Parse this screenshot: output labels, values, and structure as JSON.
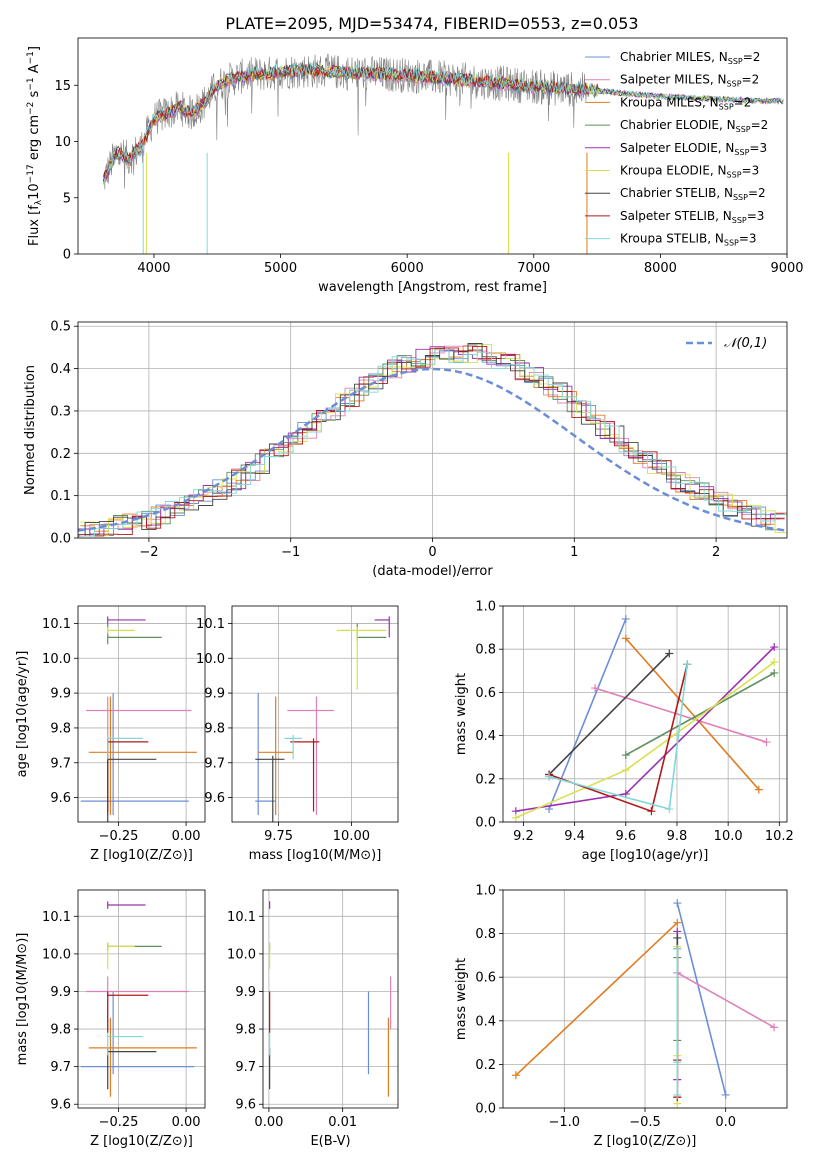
{
  "figure": {
    "title": "PLATE=2095, MJD=53474, FIBERID=0553, z=0.053"
  },
  "series_styles": [
    {
      "name": "Chabrier MILES",
      "nssp": "2",
      "color": "#6b8fd6"
    },
    {
      "name": "Salpeter MILES",
      "nssp": "2",
      "color": "#e080b8"
    },
    {
      "name": "Kroupa MILES",
      "nssp": "2",
      "color": "#e07b20"
    },
    {
      "name": "Chabrier ELODIE",
      "nssp": "2",
      "color": "#5e8f5e"
    },
    {
      "name": "Salpeter ELODIE",
      "nssp": "3",
      "color": "#9b30b0"
    },
    {
      "name": "Kroupa ELODIE",
      "nssp": "3",
      "color": "#d8e050"
    },
    {
      "name": "Chabrier STELIB",
      "nssp": "2",
      "color": "#444444"
    },
    {
      "name": "Salpeter STELIB",
      "nssp": "3",
      "color": "#b01818"
    },
    {
      "name": "Kroupa STELIB",
      "nssp": "3",
      "color": "#80d8d8"
    }
  ],
  "chart_data": [
    {
      "id": "spectrum",
      "type": "line",
      "xlabel": "wavelength [Angstrom, rest frame]",
      "ylabel": "Flux [f_λ10^-17 erg cm^-2 s^-1 A^-1]",
      "xlim": [
        3400,
        9000
      ],
      "ylim": [
        0,
        19.2
      ],
      "xticks": [
        4000,
        5000,
        6000,
        7000,
        8000,
        9000
      ],
      "yticks": [
        0,
        5,
        10,
        15
      ],
      "data_color": "#808080",
      "data_continuum": {
        "x": [
          3600,
          3700,
          3800,
          3900,
          4000,
          4100,
          4200,
          4300,
          4400,
          4500,
          4600,
          4700,
          4800,
          4900,
          5000,
          5200,
          5400,
          5600,
          5800,
          6000,
          6200,
          6400,
          6600,
          6800,
          7000,
          7200,
          7400,
          7600,
          7800,
          8000,
          8200,
          8400,
          8600,
          8800,
          8950
        ],
        "y": [
          6.5,
          9,
          8.5,
          9.5,
          12,
          12.5,
          13,
          12.5,
          13.5,
          15,
          15.5,
          15.8,
          16,
          16,
          16.2,
          16.3,
          16.2,
          16.1,
          16,
          15.9,
          15.7,
          15.5,
          15.3,
          15.1,
          14.9,
          14.7,
          14.6,
          14.4,
          14.2,
          14.0,
          13.9,
          13.8,
          13.7,
          13.6,
          13.6
        ]
      },
      "legend_position": "upper right"
    },
    {
      "id": "residuals",
      "type": "step",
      "xlabel": "(data-model)/error",
      "ylabel": "Normed distribution",
      "xlim": [
        -2.5,
        2.5
      ],
      "ylim": [
        0,
        0.51
      ],
      "xticks": [
        -2,
        -1,
        0,
        1,
        2
      ],
      "yticks": [
        0,
        0.1,
        0.2,
        0.3,
        0.4,
        0.5
      ],
      "reference_curve": {
        "name": "𝒩(0,1)",
        "type": "gaussian",
        "mean": 0,
        "sigma": 1,
        "color": "#6b8fd6"
      },
      "legend_position": "upper right",
      "bin_width": 0.1,
      "bins_from": -2.5
    },
    {
      "id": "age-vs-Z",
      "type": "errorbar",
      "xlabel": "Z [log10(Z/Z⊙)]",
      "ylabel": "age  [log10(age/yr)]",
      "xlim": [
        -0.4,
        0.07
      ],
      "ylim": [
        9.53,
        10.15
      ],
      "xticks": [
        -0.25,
        0.0
      ],
      "yticks": [
        9.6,
        9.7,
        9.8,
        9.9,
        10.0,
        10.1
      ],
      "points": [
        {
          "x": -0.27,
          "y": 9.59,
          "xerr": [
            0.12,
            0.28
          ],
          "yerr": [
            0.04,
            0.31
          ],
          "series": 0
        },
        {
          "x": -0.29,
          "y": 9.85,
          "xerr": [
            0.08,
            0.31
          ],
          "yerr": [
            0.3,
            0.04
          ],
          "series": 1
        },
        {
          "x": -0.28,
          "y": 9.73,
          "xerr": [
            0.08,
            0.32
          ],
          "yerr": [
            0.18,
            0.16
          ],
          "series": 2
        },
        {
          "x": -0.29,
          "y": 10.06,
          "xerr": [
            0.0,
            0.2
          ],
          "yerr": [
            0.02,
            0.04
          ],
          "series": 3
        },
        {
          "x": -0.29,
          "y": 10.11,
          "xerr": [
            0.0,
            0.14
          ],
          "yerr": [
            0.01,
            0.01
          ],
          "series": 4
        },
        {
          "x": -0.29,
          "y": 10.08,
          "xerr": [
            0.0,
            0.1
          ],
          "yerr": [
            0.01,
            0.01
          ],
          "series": 5
        },
        {
          "x": -0.29,
          "y": 9.71,
          "xerr": [
            0.0,
            0.18
          ],
          "yerr": [
            0.18,
            0.01
          ],
          "series": 6
        },
        {
          "x": -0.29,
          "y": 9.76,
          "xerr": [
            0.0,
            0.15
          ],
          "yerr": [
            0.2,
            0.01
          ],
          "series": 7
        },
        {
          "x": -0.29,
          "y": 9.77,
          "xerr": [
            0.0,
            0.13
          ],
          "yerr": [
            0.06,
            0.01
          ],
          "series": 8
        }
      ]
    },
    {
      "id": "age-vs-mass",
      "type": "errorbar",
      "xlabel": "mass [log10(M/M⊙)]",
      "ylabel": "",
      "xlim": [
        9.59,
        10.16
      ],
      "ylim": [
        9.53,
        10.15
      ],
      "xticks": [
        9.75,
        10.0
      ],
      "yticks": [
        9.6,
        9.7,
        9.8,
        9.9,
        10.0,
        10.1
      ],
      "points": [
        {
          "x": 9.68,
          "y": 9.59,
          "xerr": [
            0.01,
            0.06
          ],
          "yerr": [
            0.04,
            0.31
          ],
          "series": 0
        },
        {
          "x": 9.88,
          "y": 9.85,
          "xerr": [
            0.1,
            0.06
          ],
          "yerr": [
            0.3,
            0.04
          ],
          "series": 1
        },
        {
          "x": 9.74,
          "y": 9.73,
          "xerr": [
            0.06,
            0.06
          ],
          "yerr": [
            0.18,
            0.16
          ],
          "series": 2
        },
        {
          "x": 10.02,
          "y": 10.06,
          "xerr": [
            0.0,
            0.1
          ],
          "yerr": [
            0.01,
            0.04
          ],
          "series": 3
        },
        {
          "x": 10.13,
          "y": 10.11,
          "xerr": [
            0.05,
            0.0
          ],
          "yerr": [
            0.05,
            0.01
          ],
          "series": 4
        },
        {
          "x": 10.02,
          "y": 10.08,
          "xerr": [
            0.07,
            0.1
          ],
          "yerr": [
            0.17,
            0.01
          ],
          "series": 5
        },
        {
          "x": 9.73,
          "y": 9.71,
          "xerr": [
            0.06,
            0.04
          ],
          "yerr": [
            0.18,
            0.01
          ],
          "series": 6
        },
        {
          "x": 9.87,
          "y": 9.76,
          "xerr": [
            0.08,
            0.02
          ],
          "yerr": [
            0.2,
            0.01
          ],
          "series": 7
        },
        {
          "x": 9.8,
          "y": 9.77,
          "xerr": [
            0.03,
            0.03
          ],
          "yerr": [
            0.06,
            0.01
          ],
          "series": 8
        }
      ]
    },
    {
      "id": "weight-vs-age",
      "type": "line",
      "xlabel": "age  [log10(age/yr)]",
      "ylabel": "mass weight",
      "xlim": [
        9.12,
        10.23
      ],
      "ylim": [
        0,
        1.0
      ],
      "xticks": [
        9.2,
        9.4,
        9.6,
        9.8,
        10.0,
        10.2
      ],
      "yticks": [
        0.0,
        0.2,
        0.4,
        0.6,
        0.8,
        1.0
      ],
      "series": [
        {
          "style": 0,
          "x": [
            9.3,
            9.6
          ],
          "y": [
            0.06,
            0.94
          ]
        },
        {
          "style": 1,
          "x": [
            9.48,
            10.15
          ],
          "y": [
            0.62,
            0.37
          ]
        },
        {
          "style": 2,
          "x": [
            9.6,
            10.12
          ],
          "y": [
            0.85,
            0.15
          ]
        },
        {
          "style": 3,
          "x": [
            9.6,
            10.18
          ],
          "y": [
            0.31,
            0.69
          ]
        },
        {
          "style": 4,
          "x": [
            9.17,
            9.6,
            10.18
          ],
          "y": [
            0.05,
            0.13,
            0.81
          ]
        },
        {
          "style": 5,
          "x": [
            9.17,
            9.6,
            10.18
          ],
          "y": [
            0.02,
            0.24,
            0.74
          ]
        },
        {
          "style": 6,
          "x": [
            9.3,
            9.77
          ],
          "y": [
            0.22,
            0.78
          ]
        },
        {
          "style": 7,
          "x": [
            9.3,
            9.7,
            9.84
          ],
          "y": [
            0.22,
            0.05,
            0.73
          ]
        },
        {
          "style": 8,
          "x": [
            9.3,
            9.77,
            9.84
          ],
          "y": [
            0.21,
            0.06,
            0.73
          ]
        }
      ]
    },
    {
      "id": "mass-vs-Z",
      "type": "errorbar",
      "xlabel": "Z [log10(Z/Z⊙)]",
      "ylabel": "mass [log10(M/M⊙)]",
      "xlim": [
        -0.4,
        0.07
      ],
      "ylim": [
        9.59,
        10.17
      ],
      "xticks": [
        -0.25,
        0.0
      ],
      "yticks": [
        9.6,
        9.7,
        9.8,
        9.9,
        10.0,
        10.1
      ],
      "points": [
        {
          "x": -0.27,
          "y": 9.7,
          "xerr": [
            0.12,
            0.3
          ],
          "yerr": [
            0.02,
            0.2
          ],
          "series": 0
        },
        {
          "x": -0.29,
          "y": 9.9,
          "xerr": [
            0.08,
            0.3
          ],
          "yerr": [
            0.1,
            0.04
          ],
          "series": 1
        },
        {
          "x": -0.28,
          "y": 9.75,
          "xerr": [
            0.08,
            0.32
          ],
          "yerr": [
            0.13,
            0.08
          ],
          "series": 2
        },
        {
          "x": -0.29,
          "y": 10.02,
          "xerr": [
            0.0,
            0.2
          ],
          "yerr": [
            0.01,
            0.01
          ],
          "series": 3
        },
        {
          "x": -0.29,
          "y": 10.13,
          "xerr": [
            0.0,
            0.14
          ],
          "yerr": [
            0.01,
            0.01
          ],
          "series": 4
        },
        {
          "x": -0.29,
          "y": 10.02,
          "xerr": [
            0.0,
            0.1
          ],
          "yerr": [
            0.06,
            0.01
          ],
          "series": 5
        },
        {
          "x": -0.29,
          "y": 9.74,
          "xerr": [
            0.0,
            0.18
          ],
          "yerr": [
            0.1,
            0.01
          ],
          "series": 6
        },
        {
          "x": -0.29,
          "y": 9.89,
          "xerr": [
            0.0,
            0.15
          ],
          "yerr": [
            0.1,
            0.01
          ],
          "series": 7
        },
        {
          "x": -0.29,
          "y": 9.78,
          "xerr": [
            0.0,
            0.13
          ],
          "yerr": [
            0.05,
            0.01
          ],
          "series": 8
        }
      ]
    },
    {
      "id": "mass-vs-ebv",
      "type": "errorbar",
      "xlabel": "E(B-V)",
      "ylabel": "",
      "xlim": [
        -0.0008,
        0.0175
      ],
      "ylim": [
        9.59,
        10.17
      ],
      "xticks": [
        0.0,
        0.01
      ],
      "yticks": [
        9.6,
        9.7,
        9.8,
        9.9,
        10.0,
        10.1
      ],
      "points": [
        {
          "x": 0.0135,
          "y": 9.7,
          "xerr": [
            0,
            0
          ],
          "yerr": [
            0.02,
            0.2
          ],
          "series": 0
        },
        {
          "x": 0.0165,
          "y": 9.9,
          "xerr": [
            0,
            0
          ],
          "yerr": [
            0.1,
            0.04
          ],
          "series": 1
        },
        {
          "x": 0.0162,
          "y": 9.75,
          "xerr": [
            0,
            0
          ],
          "yerr": [
            0.13,
            0.08
          ],
          "series": 2
        },
        {
          "x": 0.0001,
          "y": 10.02,
          "xerr": [
            0,
            0
          ],
          "yerr": [
            0.01,
            0.01
          ],
          "series": 3
        },
        {
          "x": 0.0001,
          "y": 10.13,
          "xerr": [
            0,
            0
          ],
          "yerr": [
            0.01,
            0.01
          ],
          "series": 4
        },
        {
          "x": 0.0001,
          "y": 10.02,
          "xerr": [
            0,
            0
          ],
          "yerr": [
            0.06,
            0.01
          ],
          "series": 5
        },
        {
          "x": 0.0001,
          "y": 9.74,
          "xerr": [
            0,
            0
          ],
          "yerr": [
            0.1,
            0.01
          ],
          "series": 6
        },
        {
          "x": 0.0001,
          "y": 9.89,
          "xerr": [
            0,
            0
          ],
          "yerr": [
            0.1,
            0.01
          ],
          "series": 7
        },
        {
          "x": 0.0001,
          "y": 9.78,
          "xerr": [
            0,
            0
          ],
          "yerr": [
            0.05,
            0.01
          ],
          "series": 8
        }
      ]
    },
    {
      "id": "weight-vs-Z",
      "type": "line",
      "xlabel": "Z [log10(Z/Z⊙)]",
      "ylabel": "mass weight",
      "xlim": [
        -1.38,
        0.38
      ],
      "ylim": [
        0,
        1.0
      ],
      "xticks": [
        -1.0,
        -0.5,
        0.0
      ],
      "yticks": [
        0.0,
        0.2,
        0.4,
        0.6,
        0.8,
        1.0
      ],
      "series": [
        {
          "style": 0,
          "x": [
            -0.3,
            0.0
          ],
          "y": [
            0.94,
            0.06
          ]
        },
        {
          "style": 1,
          "x": [
            -0.3,
            0.3
          ],
          "y": [
            0.62,
            0.37
          ]
        },
        {
          "style": 2,
          "x": [
            -1.3,
            -0.3
          ],
          "y": [
            0.15,
            0.85
          ]
        },
        {
          "style": 3,
          "x": [
            -0.3,
            -0.3
          ],
          "y": [
            0.31,
            0.69
          ]
        },
        {
          "style": 4,
          "x": [
            -0.3,
            -0.3,
            -0.3
          ],
          "y": [
            0.05,
            0.13,
            0.81
          ]
        },
        {
          "style": 5,
          "x": [
            -0.3,
            -0.3,
            -0.3
          ],
          "y": [
            0.02,
            0.24,
            0.74
          ]
        },
        {
          "style": 6,
          "x": [
            -0.3,
            -0.3
          ],
          "y": [
            0.22,
            0.78
          ]
        },
        {
          "style": 7,
          "x": [
            -0.3,
            -0.3,
            -0.3
          ],
          "y": [
            0.22,
            0.05,
            0.73
          ]
        },
        {
          "style": 8,
          "x": [
            -0.3,
            -0.3,
            -0.3
          ],
          "y": [
            0.21,
            0.06,
            0.73
          ]
        }
      ]
    }
  ]
}
